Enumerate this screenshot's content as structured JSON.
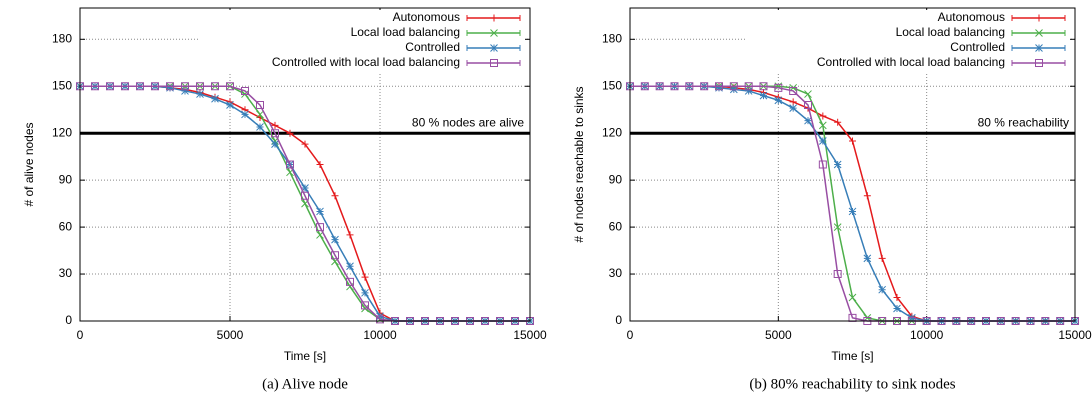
{
  "chart_data": [
    {
      "type": "line",
      "xlabel": "Time [s]",
      "ylabel": "# of alive nodes",
      "caption": "(a)  Alive node",
      "x": [
        0,
        500,
        1000,
        1500,
        2000,
        2500,
        3000,
        3500,
        4000,
        4500,
        5000,
        5500,
        6000,
        6500,
        7000,
        7500,
        8000,
        8500,
        9000,
        9500,
        10000,
        10500,
        11000,
        11500,
        12000,
        12500,
        13000,
        13500,
        14000,
        14500,
        15000
      ],
      "xlim": [
        0,
        15000
      ],
      "xticks": [
        0,
        5000,
        10000,
        15000
      ],
      "ylim": [
        0,
        200
      ],
      "yticks": [
        0,
        30,
        60,
        90,
        120,
        150,
        180
      ],
      "grid": true,
      "hline": {
        "value": 120,
        "label": "80 % nodes are alive"
      },
      "legend": "upper right",
      "series": [
        {
          "name": "Autonomous",
          "color": "#e41a1c",
          "marker": "plus",
          "values": [
            150,
            150,
            150,
            150,
            150,
            150,
            149,
            148,
            146,
            143,
            140,
            135,
            130,
            125,
            120,
            113,
            100,
            80,
            55,
            28,
            5,
            0,
            0,
            0,
            0,
            0,
            0,
            0,
            0,
            0,
            0
          ]
        },
        {
          "name": "Local load balancing",
          "color": "#4daf4a",
          "marker": "x",
          "values": [
            150,
            150,
            150,
            150,
            150,
            150,
            150,
            150,
            150,
            150,
            150,
            145,
            132,
            115,
            95,
            75,
            55,
            38,
            22,
            8,
            1,
            0,
            0,
            0,
            0,
            0,
            0,
            0,
            0,
            0,
            0
          ]
        },
        {
          "name": "Controlled",
          "color": "#377eb8",
          "marker": "star",
          "values": [
            150,
            150,
            150,
            150,
            150,
            150,
            149,
            147,
            145,
            142,
            138,
            132,
            124,
            113,
            100,
            85,
            70,
            52,
            35,
            18,
            3,
            0,
            0,
            0,
            0,
            0,
            0,
            0,
            0,
            0,
            0
          ]
        },
        {
          "name": "Controlled with local load balancing",
          "color": "#984ea3",
          "marker": "square",
          "values": [
            150,
            150,
            150,
            150,
            150,
            150,
            150,
            150,
            150,
            150,
            150,
            147,
            138,
            120,
            100,
            80,
            60,
            42,
            25,
            10,
            1,
            0,
            0,
            0,
            0,
            0,
            0,
            0,
            0,
            0,
            0
          ]
        }
      ]
    },
    {
      "type": "line",
      "xlabel": "Time [s]",
      "ylabel": "# of nodes reachable to sinks",
      "caption": "(b)  80% reachability to sink nodes",
      "x": [
        0,
        500,
        1000,
        1500,
        2000,
        2500,
        3000,
        3500,
        4000,
        4500,
        5000,
        5500,
        6000,
        6500,
        7000,
        7500,
        8000,
        8500,
        9000,
        9500,
        10000,
        10500,
        11000,
        11500,
        12000,
        12500,
        13000,
        13500,
        14000,
        14500,
        15000
      ],
      "xlim": [
        0,
        15000
      ],
      "xticks": [
        0,
        5000,
        10000,
        15000
      ],
      "ylim": [
        0,
        200
      ],
      "yticks": [
        0,
        30,
        60,
        90,
        120,
        150,
        180
      ],
      "grid": true,
      "hline": {
        "value": 120,
        "label": "80 % reachability"
      },
      "legend": "upper right",
      "series": [
        {
          "name": "Autonomous",
          "color": "#e41a1c",
          "marker": "plus",
          "values": [
            150,
            150,
            150,
            150,
            150,
            150,
            150,
            149,
            148,
            146,
            143,
            140,
            136,
            131,
            127,
            115,
            80,
            40,
            15,
            3,
            0,
            0,
            0,
            0,
            0,
            0,
            0,
            0,
            0,
            0,
            0
          ]
        },
        {
          "name": "Local load balancing",
          "color": "#4daf4a",
          "marker": "x",
          "values": [
            150,
            150,
            150,
            150,
            150,
            150,
            150,
            150,
            150,
            150,
            150,
            149,
            145,
            125,
            60,
            15,
            2,
            0,
            0,
            0,
            0,
            0,
            0,
            0,
            0,
            0,
            0,
            0,
            0,
            0,
            0
          ]
        },
        {
          "name": "Controlled",
          "color": "#377eb8",
          "marker": "star",
          "values": [
            150,
            150,
            150,
            150,
            150,
            150,
            149,
            148,
            147,
            144,
            141,
            136,
            128,
            115,
            100,
            70,
            40,
            20,
            8,
            2,
            0,
            0,
            0,
            0,
            0,
            0,
            0,
            0,
            0,
            0,
            0
          ]
        },
        {
          "name": "Controlled with local load balancing",
          "color": "#984ea3",
          "marker": "square",
          "values": [
            150,
            150,
            150,
            150,
            150,
            150,
            150,
            150,
            150,
            150,
            149,
            147,
            138,
            100,
            30,
            2,
            0,
            0,
            0,
            0,
            0,
            0,
            0,
            0,
            0,
            0,
            0,
            0,
            0,
            0,
            0
          ]
        }
      ]
    }
  ]
}
